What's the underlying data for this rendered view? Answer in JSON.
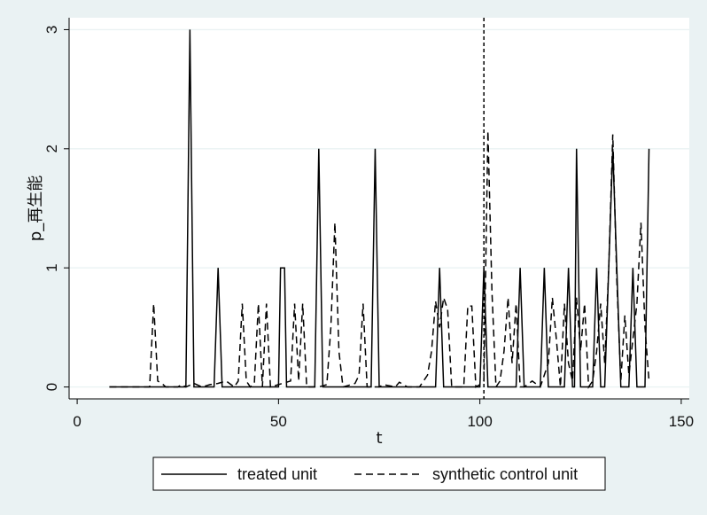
{
  "chart_data": {
    "type": "line",
    "title": "",
    "xlabel": "t",
    "ylabel": "p_再生能",
    "xlim": [
      -2,
      152
    ],
    "ylim": [
      -0.1,
      3.1
    ],
    "xticks": [
      0,
      50,
      100,
      150
    ],
    "yticks": [
      0,
      1,
      2,
      3
    ],
    "grid": "horizontal",
    "vline": 101,
    "legend_position": "bottom",
    "series": [
      {
        "name": "treated unit",
        "style": "solid",
        "color": "#000000",
        "points": [
          [
            8,
            0
          ],
          [
            27,
            0
          ],
          [
            28,
            3
          ],
          [
            29,
            0
          ],
          [
            34,
            0
          ],
          [
            35,
            1
          ],
          [
            36,
            0
          ],
          [
            50,
            0
          ],
          [
            50.5,
            1
          ],
          [
            51.5,
            1
          ],
          [
            52,
            0
          ],
          [
            59,
            0
          ],
          [
            60,
            2
          ],
          [
            61,
            0
          ],
          [
            73,
            0
          ],
          [
            74,
            2
          ],
          [
            75,
            0
          ],
          [
            89,
            0
          ],
          [
            90,
            1
          ],
          [
            91,
            0
          ],
          [
            100,
            0
          ],
          [
            101,
            1
          ],
          [
            102,
            0
          ],
          [
            109,
            0
          ],
          [
            110,
            1
          ],
          [
            111,
            0
          ],
          [
            115,
            0
          ],
          [
            116,
            1
          ],
          [
            117,
            0
          ],
          [
            121,
            0
          ],
          [
            122,
            1
          ],
          [
            123,
            0
          ],
          [
            123.5,
            0
          ],
          [
            124,
            2
          ],
          [
            125,
            0
          ],
          [
            128,
            0
          ],
          [
            129,
            1
          ],
          [
            130,
            0
          ],
          [
            131,
            0
          ],
          [
            132,
            1
          ],
          [
            133,
            2
          ],
          [
            134,
            1
          ],
          [
            135,
            0
          ],
          [
            137,
            0
          ],
          [
            138,
            1
          ],
          [
            139,
            0
          ],
          [
            141,
            0
          ],
          [
            142,
            2
          ]
        ]
      },
      {
        "name": "synthetic control unit",
        "style": "dashed",
        "color": "#000000",
        "points": [
          [
            8,
            0
          ],
          [
            18,
            0
          ],
          [
            19,
            0.7
          ],
          [
            20,
            0.05
          ],
          [
            21,
            0.03
          ],
          [
            22,
            0
          ],
          [
            25,
            0
          ],
          [
            26,
            0.02
          ],
          [
            27,
            0
          ],
          [
            29,
            0.03
          ],
          [
            31,
            0
          ],
          [
            33,
            0.02
          ],
          [
            35,
            0.03
          ],
          [
            37,
            0.05
          ],
          [
            39,
            0
          ],
          [
            40,
            0.05
          ],
          [
            41,
            0.7
          ],
          [
            42,
            0.05
          ],
          [
            43,
            0
          ],
          [
            44,
            0.03
          ],
          [
            45,
            0.7
          ],
          [
            46,
            0
          ],
          [
            47,
            0.7
          ],
          [
            48,
            0
          ],
          [
            50,
            0.02
          ],
          [
            52,
            0.04
          ],
          [
            53,
            0.05
          ],
          [
            54,
            0.7
          ],
          [
            55,
            0.05
          ],
          [
            56,
            0.7
          ],
          [
            57,
            0
          ],
          [
            60,
            0
          ],
          [
            62,
            0.02
          ],
          [
            63,
            0.5
          ],
          [
            64,
            1.38
          ],
          [
            65,
            0.3
          ],
          [
            66,
            0
          ],
          [
            69,
            0.03
          ],
          [
            70,
            0.1
          ],
          [
            71,
            0.7
          ],
          [
            72,
            0
          ],
          [
            75,
            0
          ],
          [
            76,
            0.02
          ],
          [
            79,
            0
          ],
          [
            80,
            0.04
          ],
          [
            82,
            0
          ],
          [
            85,
            0
          ],
          [
            87,
            0.1
          ],
          [
            88,
            0.3
          ],
          [
            89,
            0.72
          ],
          [
            90,
            0.5
          ],
          [
            91,
            0.75
          ],
          [
            92,
            0.65
          ],
          [
            93,
            0
          ],
          [
            96,
            0
          ],
          [
            97,
            0.68
          ],
          [
            98,
            0.68
          ],
          [
            99,
            0
          ],
          [
            100,
            0.02
          ],
          [
            101,
            0.05
          ],
          [
            102,
            2.15
          ],
          [
            103,
            0.8
          ],
          [
            104,
            0
          ],
          [
            105,
            0.05
          ],
          [
            106,
            0.3
          ],
          [
            107,
            0.75
          ],
          [
            108,
            0.2
          ],
          [
            109,
            0.7
          ],
          [
            110,
            0
          ],
          [
            111,
            0
          ],
          [
            113,
            0.05
          ],
          [
            115,
            0
          ],
          [
            117,
            0.2
          ],
          [
            118,
            0.75
          ],
          [
            119,
            0.4
          ],
          [
            120,
            0
          ],
          [
            121,
            0.7
          ],
          [
            122,
            0.2
          ],
          [
            123,
            0.05
          ],
          [
            124,
            0.75
          ],
          [
            125,
            0.3
          ],
          [
            126,
            0.7
          ],
          [
            127,
            0
          ],
          [
            128,
            0.05
          ],
          [
            129,
            0.3
          ],
          [
            130,
            0.7
          ],
          [
            131,
            0.2
          ],
          [
            132,
            1.0
          ],
          [
            133,
            2.12
          ],
          [
            134,
            0.9
          ],
          [
            135,
            0.05
          ],
          [
            136,
            0.6
          ],
          [
            137,
            0.1
          ],
          [
            138,
            0.4
          ],
          [
            139,
            0.7
          ],
          [
            140,
            1.38
          ],
          [
            141,
            0.5
          ],
          [
            142,
            0.05
          ]
        ]
      }
    ]
  }
}
